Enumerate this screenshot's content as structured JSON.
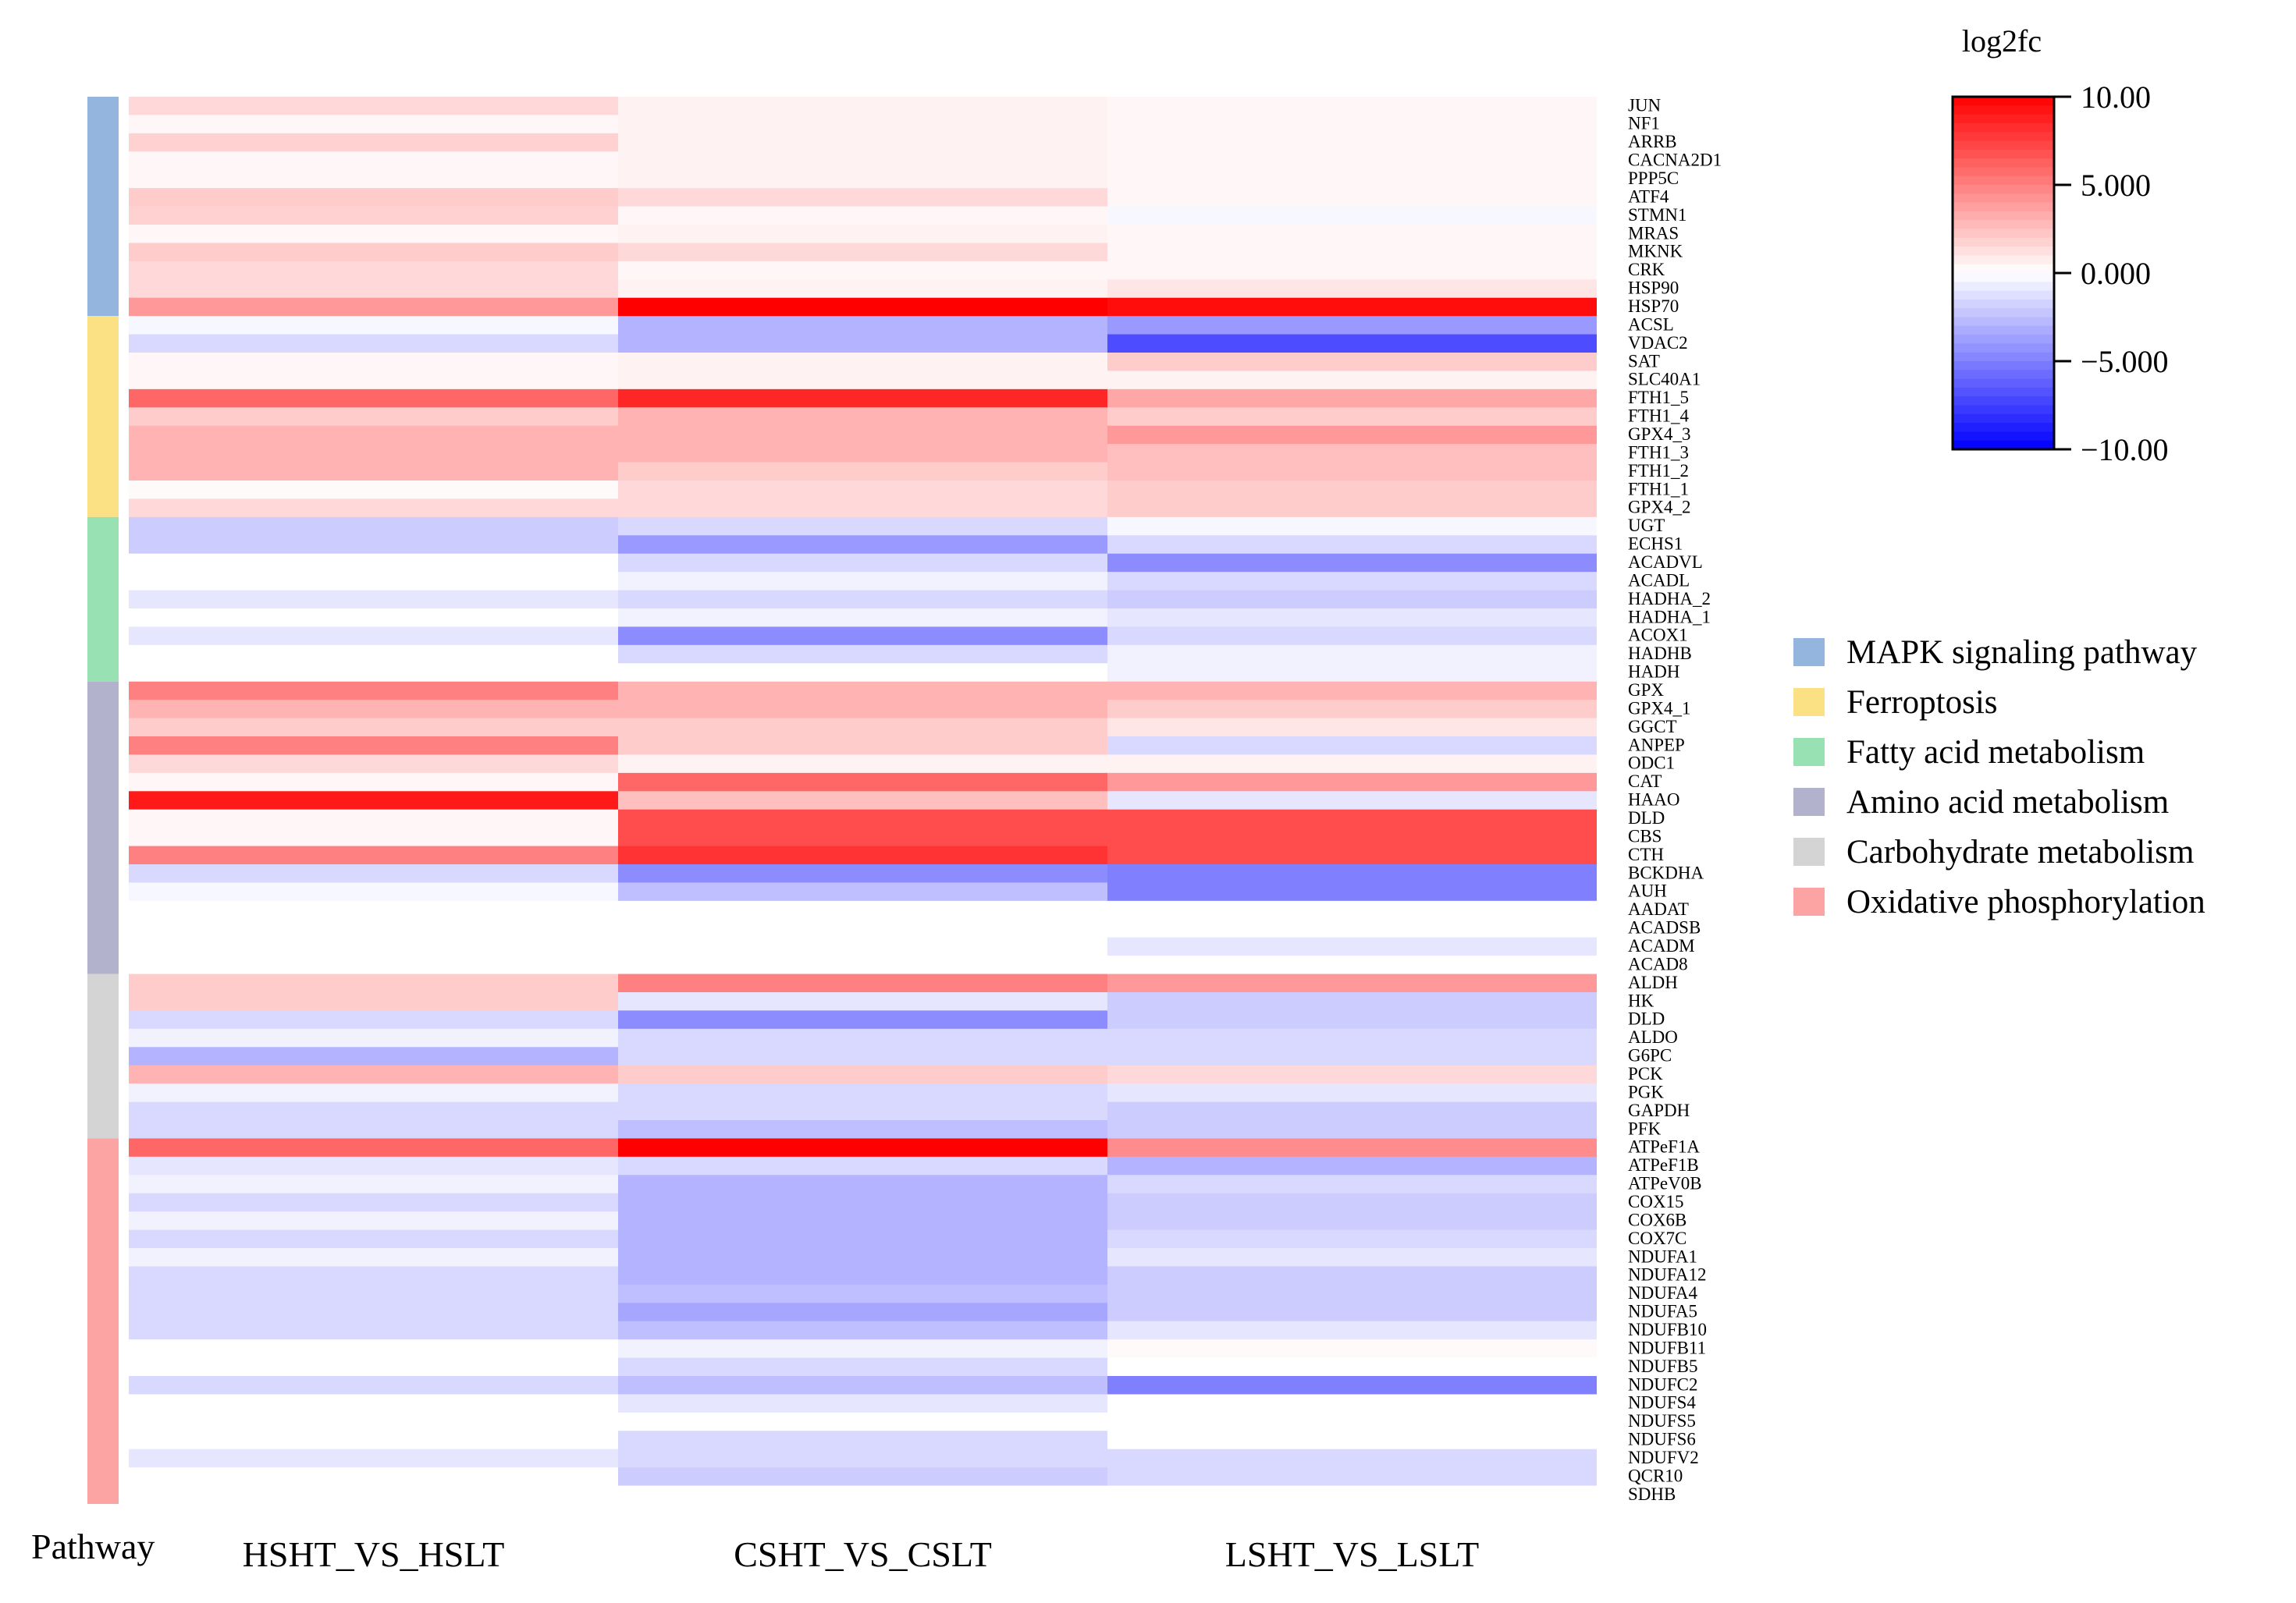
{
  "chart_data": {
    "type": "heatmap",
    "title": "",
    "pathway_axis_label": "Pathway",
    "columns": [
      "HSHT_VS_HSLT",
      "CSHT_VS_CSLT",
      "LSHT_VS_LSLT"
    ],
    "genes": [
      "JUN",
      "NF1",
      "ARRB",
      "CACNA2D1",
      "PPP5C",
      "ATF4",
      "STMN1",
      "MRAS",
      "MKNK",
      "CRK",
      "HSP90",
      "HSP70",
      "ACSL",
      "VDAC2",
      "SAT",
      "SLC40A1",
      "FTH1_5",
      "FTH1_4",
      "GPX4_3",
      "FTH1_3",
      "FTH1_2",
      "FTH1_1",
      "GPX4_2",
      "UGT",
      "ECHS1",
      "ACADVL",
      "ACADL",
      "HADHA_2",
      "HADHA_1",
      "ACOX1",
      "HADHB",
      "HADH",
      "GPX",
      "GPX4_1",
      "GGCT",
      "ANPEP",
      "ODC1",
      "CAT",
      "HAAO",
      "DLD",
      "CBS",
      "CTH",
      "BCKDHA",
      "AUH",
      "AADAT",
      "ACADSB",
      "ACADM",
      "ACAD8",
      "ALDH",
      "HK",
      "DLD",
      "ALDO",
      "G6PC",
      "PCK",
      "PGK",
      "GAPDH",
      "PFK",
      "ATPeF1A",
      "ATPeF1B",
      "ATPeV0B",
      "COX15",
      "COX6B",
      "COX7C",
      "NDUFA1",
      "NDUFA12",
      "NDUFA4",
      "NDUFA5",
      "NDUFB10",
      "NDUFB11",
      "NDUFB5",
      "NDUFC2",
      "NDUFS4",
      "NDUFS5",
      "NDUFS6",
      "NDUFV2",
      "QCR10",
      "SDHB"
    ],
    "values": [
      [
        1.5,
        0.5,
        0.3
      ],
      [
        0.3,
        0.5,
        0.3
      ],
      [
        1.8,
        0.5,
        0.3
      ],
      [
        0.3,
        0.5,
        0.3
      ],
      [
        0.3,
        0.5,
        0.3
      ],
      [
        2.0,
        1.5,
        0.3
      ],
      [
        1.8,
        0.3,
        -0.3
      ],
      [
        0.3,
        0.5,
        0.3
      ],
      [
        2.0,
        1.5,
        0.3
      ],
      [
        1.5,
        0.3,
        0.3
      ],
      [
        1.5,
        0.5,
        1.0
      ],
      [
        4.0,
        10.0,
        9.5
      ],
      [
        -0.3,
        -3.0,
        -4.0
      ],
      [
        -1.5,
        -3.0,
        -7.0
      ],
      [
        0.3,
        0.5,
        2.0
      ],
      [
        0.3,
        0.5,
        0.5
      ],
      [
        6.0,
        8.5,
        3.5
      ],
      [
        2.0,
        3.0,
        2.0
      ],
      [
        3.0,
        3.0,
        4.0
      ],
      [
        3.0,
        3.0,
        2.5
      ],
      [
        3.0,
        2.0,
        2.5
      ],
      [
        0.2,
        1.5,
        2.0
      ],
      [
        1.5,
        1.5,
        2.0
      ],
      [
        -2.0,
        -1.5,
        -0.3
      ],
      [
        -2.0,
        -4.0,
        -1.5
      ],
      [
        0.0,
        -1.5,
        -4.5
      ],
      [
        0.0,
        -0.5,
        -1.5
      ],
      [
        -1.0,
        -1.5,
        -2.0
      ],
      [
        0.0,
        -0.5,
        -1.0
      ],
      [
        -1.0,
        -4.5,
        -1.5
      ],
      [
        0.0,
        -1.5,
        -0.5
      ],
      [
        0.0,
        0.0,
        -0.5
      ],
      [
        5.0,
        3.0,
        3.0
      ],
      [
        3.0,
        3.0,
        2.0
      ],
      [
        2.0,
        2.0,
        1.0
      ],
      [
        5.0,
        2.0,
        -1.5
      ],
      [
        1.5,
        0.5,
        0.5
      ],
      [
        0.3,
        6.0,
        4.0
      ],
      [
        9.0,
        2.5,
        -1.0
      ],
      [
        0.3,
        7.0,
        7.0
      ],
      [
        0.3,
        7.0,
        7.0
      ],
      [
        5.0,
        8.0,
        7.0
      ],
      [
        -1.5,
        -4.5,
        -5.0
      ],
      [
        -0.3,
        -2.5,
        -5.0
      ],
      [
        0.0,
        0.0,
        0.0
      ],
      [
        0.0,
        0.0,
        0.0
      ],
      [
        0.0,
        0.0,
        -1.0
      ],
      [
        0.0,
        0.0,
        0.0
      ],
      [
        2.0,
        5.0,
        4.0
      ],
      [
        2.0,
        -1.0,
        -2.0
      ],
      [
        -1.5,
        -4.5,
        -2.0
      ],
      [
        -0.5,
        -1.5,
        -1.5
      ],
      [
        -3.0,
        -1.5,
        -1.5
      ],
      [
        3.0,
        2.0,
        1.5
      ],
      [
        -0.5,
        -1.5,
        -1.0
      ],
      [
        -1.5,
        -1.5,
        -2.0
      ],
      [
        -1.5,
        -2.5,
        -2.0
      ],
      [
        6.0,
        10.0,
        4.5
      ],
      [
        -1.0,
        -1.5,
        -3.0
      ],
      [
        -0.5,
        -3.0,
        -1.5
      ],
      [
        -1.5,
        -3.0,
        -2.0
      ],
      [
        -0.5,
        -3.0,
        -2.0
      ],
      [
        -1.5,
        -3.0,
        -1.5
      ],
      [
        -0.5,
        -3.0,
        -1.0
      ],
      [
        -1.5,
        -3.0,
        -2.0
      ],
      [
        -1.5,
        -2.5,
        -2.0
      ],
      [
        -1.5,
        -3.5,
        -2.0
      ],
      [
        -1.5,
        -2.5,
        -1.0
      ],
      [
        0.0,
        -0.5,
        0.2
      ],
      [
        0.0,
        -1.5,
        0.0
      ],
      [
        -1.5,
        -2.5,
        -5.0
      ],
      [
        0.0,
        -1.0,
        0.0
      ],
      [
        0.0,
        0.0,
        0.0
      ],
      [
        0.0,
        -1.5,
        0.0
      ],
      [
        -1.0,
        -1.5,
        -1.5
      ],
      [
        0.0,
        -2.0,
        -1.5
      ],
      [
        0.0,
        0.0,
        0.0
      ]
    ],
    "pathways": [
      {
        "name": "MAPK signaling pathway",
        "color": "#93b5de",
        "start": 0,
        "count": 12
      },
      {
        "name": "Ferroptosis",
        "color": "#fbe084",
        "start": 12,
        "count": 11
      },
      {
        "name": "Fatty acid metabolism",
        "color": "#97e1b3",
        "start": 23,
        "count": 9
      },
      {
        "name": "Amino acid metabolism",
        "color": "#b3b2cc",
        "start": 32,
        "count": 16
      },
      {
        "name": "Carbohydrate metabolism",
        "color": "#d4d4d4",
        "start": 48,
        "count": 9
      },
      {
        "name": "Oxidative phosphorylation",
        "color": "#fca3a3",
        "start": 57,
        "count": 20
      }
    ],
    "colorbar": {
      "title": "log2fc",
      "range": [
        -10,
        10
      ],
      "ticks": [
        10,
        5,
        0,
        -5,
        -10
      ],
      "tick_labels": [
        "10.00",
        "5.000",
        "0.000",
        "−5.000",
        "−10.00"
      ],
      "color_max": "#ff0000",
      "color_mid": "#ffffff",
      "color_min": "#0000ff"
    }
  }
}
